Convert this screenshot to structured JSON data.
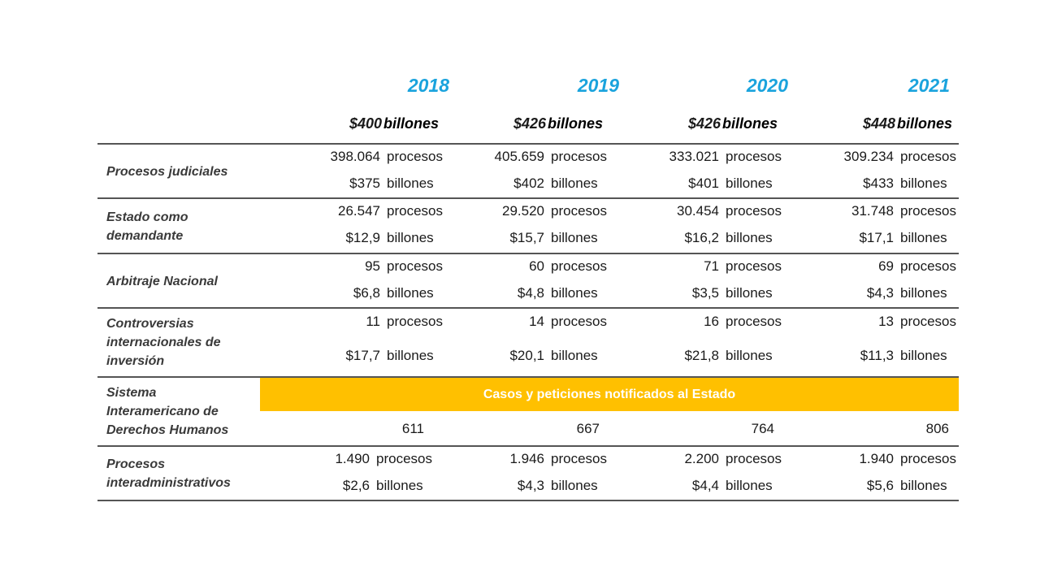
{
  "header": {
    "years": [
      "2018",
      "2019",
      "2020",
      "2021"
    ],
    "totals": [
      {
        "amount": "$400",
        "unit": "billones"
      },
      {
        "amount": "$426",
        "unit": "billones"
      },
      {
        "amount": "$426",
        "unit": "billones"
      },
      {
        "amount": "$448",
        "unit": "billones"
      }
    ]
  },
  "rows": [
    {
      "label": "Procesos judiciales",
      "line1": {
        "values": [
          "398.064",
          "405.659",
          "333.021",
          "309.234"
        ],
        "unit": "procesos"
      },
      "line2": {
        "values": [
          "$375",
          "$402",
          "$401",
          "$433"
        ],
        "unit": "billones"
      }
    },
    {
      "label": "Estado como demandante",
      "line1": {
        "values": [
          "26.547",
          "29.520",
          "30.454",
          "31.748"
        ],
        "unit": "procesos"
      },
      "line2": {
        "values": [
          "$12,9",
          "$15,7",
          "$16,2",
          "$17,1"
        ],
        "unit": "billones"
      }
    },
    {
      "label": "Arbitraje Nacional",
      "line1": {
        "values": [
          "95",
          "60",
          "71",
          "69"
        ],
        "unit": "procesos"
      },
      "line2": {
        "values": [
          "$6,8",
          "$4,8",
          "$3,5",
          "$4,3"
        ],
        "unit": "billones"
      }
    },
    {
      "label": "Controversias internacionales de inversión",
      "line1": {
        "values": [
          "11",
          "14",
          "16",
          "13"
        ],
        "unit": "procesos"
      },
      "line2": {
        "values": [
          "$17,7",
          "$20,1",
          "$21,8",
          "$11,3"
        ],
        "unit": "billones"
      }
    },
    {
      "label": "Sistema Interamericano de Derechos Humanos",
      "banner": "Casos y peticiones notificados al Estado",
      "values": [
        "611",
        "667",
        "764",
        "806"
      ]
    },
    {
      "label": "Procesos interadministrativos",
      "line1": {
        "values": [
          "1.490",
          "1.946",
          "2.200",
          "1.940"
        ],
        "unit": "procesos"
      },
      "line2": {
        "values": [
          "$2,6",
          "$4,3",
          "$4,4",
          "$5,6"
        ],
        "unit": "billones"
      }
    }
  ],
  "colors": {
    "year": "#1aa3dd",
    "banner": "#ffc000",
    "rule": "#555555"
  }
}
